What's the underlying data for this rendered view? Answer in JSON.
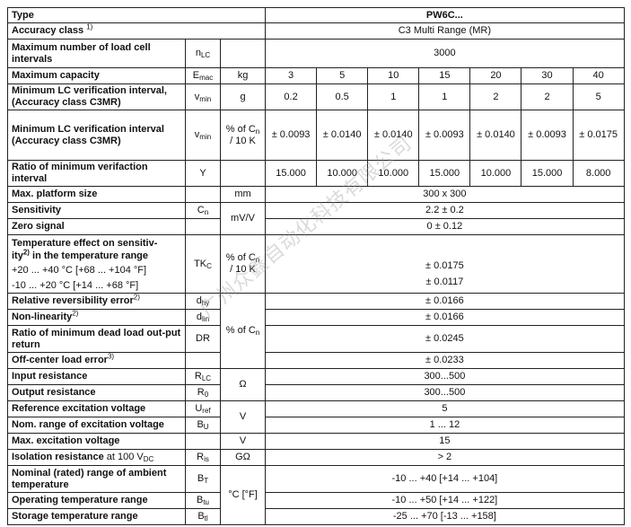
{
  "rows": {
    "type": {
      "label": "Type",
      "value": "PW6C..."
    },
    "accuracy": {
      "label": "Accuracy class",
      "sup": "1)",
      "value": "C3 Multi Range (MR)"
    },
    "nlc": {
      "label": "Maximum number of load cell intervals",
      "sym": "n",
      "sym_sub": "LC",
      "value": "3000"
    },
    "emax": {
      "label": "Maximum capacity",
      "sym": "E",
      "sym_sub": "mac",
      "unit": "kg",
      "values": [
        "3",
        "5",
        "10",
        "15",
        "20",
        "30",
        "40"
      ]
    },
    "vmin1": {
      "label1": "Minimum LC verification interval,",
      "label2": "(Accuracy class C3MR)",
      "sym": "v",
      "sym_sub": "min",
      "unit": "g",
      "values": [
        "0.2",
        "0.5",
        "1",
        "1",
        "2",
        "2",
        "5"
      ]
    },
    "vmin2": {
      "label1": "Minimum LC verification interval",
      "label2": "(Accuracy class C3MR)",
      "sym": "v",
      "sym_sub": "min",
      "unit1": "% of C",
      "unit_sub": "n",
      "unit2": "/ 10 K",
      "values": [
        "± 0.0093",
        "± 0.0140",
        "± 0.0140",
        "± 0.0093",
        "± 0.0140",
        "± 0.0093",
        "± 0.0175"
      ]
    },
    "y": {
      "label": "Ratio of minimum verifaction interval",
      "sym": "Y",
      "values": [
        "15.000",
        "10.000",
        "10.000",
        "15.000",
        "10.000",
        "15.000",
        "8.000"
      ]
    },
    "platform": {
      "label": "Max. platform size",
      "unit": "mm",
      "value": "300 x 300"
    },
    "sensitivity": {
      "label": "Sensitivity",
      "sym": "C",
      "sym_sub": "n",
      "unit": "mV/V",
      "value": "2.2 ± 0.2"
    },
    "zero": {
      "label": "Zero signal",
      "value": "0 ± 0.12"
    },
    "tk": {
      "label1": "Temperature effect on sensitiv-",
      "label2a": "ity",
      "sup": "2)",
      "label2b": " in the temperature range",
      "range1": "+20 ... +40 °C [+68 ... +104 °F]",
      "range2": "-10 ... +20 °C [+14 ... +68 °F]",
      "sym": "TK",
      "sym_sub": "C",
      "unit1": "% of C",
      "unit_sub": "n",
      "unit2": "/ 10 K",
      "value1": "± 0.0175",
      "value2": "± 0.0117"
    },
    "dhy": {
      "label": "Relative reversibility error",
      "sup": "2)",
      "sym": "d",
      "sym_sub": "hy",
      "unit1": "% of C",
      "unit_sub": "n",
      "value": "± 0.0166"
    },
    "dlin": {
      "label": "Non-linearity",
      "sup": "2)",
      "sym": "d",
      "sym_sub": "lin",
      "value": "± 0.0166"
    },
    "dr": {
      "label": "Ratio of minimum dead load out-put return",
      "sym": "DR",
      "value": "± 0.0245"
    },
    "offcenter": {
      "label": "Off-center load error",
      "sup": "3)",
      "value": "± 0.0233"
    },
    "rlc": {
      "label": "Input resistance",
      "sym": "R",
      "sym_sub": "LC",
      "unit": "Ω",
      "value": "300...500"
    },
    "r0": {
      "label": "Output resistance",
      "sym": "R",
      "sym_sub": "0",
      "value": "300...500"
    },
    "uref": {
      "label": "Reference excitation voltage",
      "sym": "U",
      "sym_sub": "ref",
      "unit": "V",
      "value": "5"
    },
    "bu": {
      "label": "Nom. range of excitation voltage",
      "sym": "B",
      "sym_sub": "U",
      "value": "1 ... 12"
    },
    "maxexc": {
      "label": "Max. excitation voltage",
      "unit": "V",
      "value": "15"
    },
    "ris": {
      "label": "Isolation resistance",
      "label_plain": " at 100 V",
      "label_sub": "DC",
      "sym": "R",
      "sym_sub": "is",
      "unit": "GΩ",
      "value": "> 2"
    },
    "bt": {
      "label": "Nominal (rated) range of ambient temperature",
      "sym": "B",
      "sym_sub": "T",
      "unit": "°C [°F]",
      "value": "-10 ... +40 [+14 ... +104]"
    },
    "btu": {
      "label": "Operating temperature range",
      "sym": "B",
      "sym_sub": "tu",
      "value": "-10 ... +50 [+14 ... +122]"
    },
    "btl": {
      "label": "Storage temperature range",
      "sym": "B",
      "sym_sub": "tl",
      "value": "-25 ... +70 [-13 ... +158]"
    }
  },
  "watermark": "广州众鑫自动化科技有限公司"
}
